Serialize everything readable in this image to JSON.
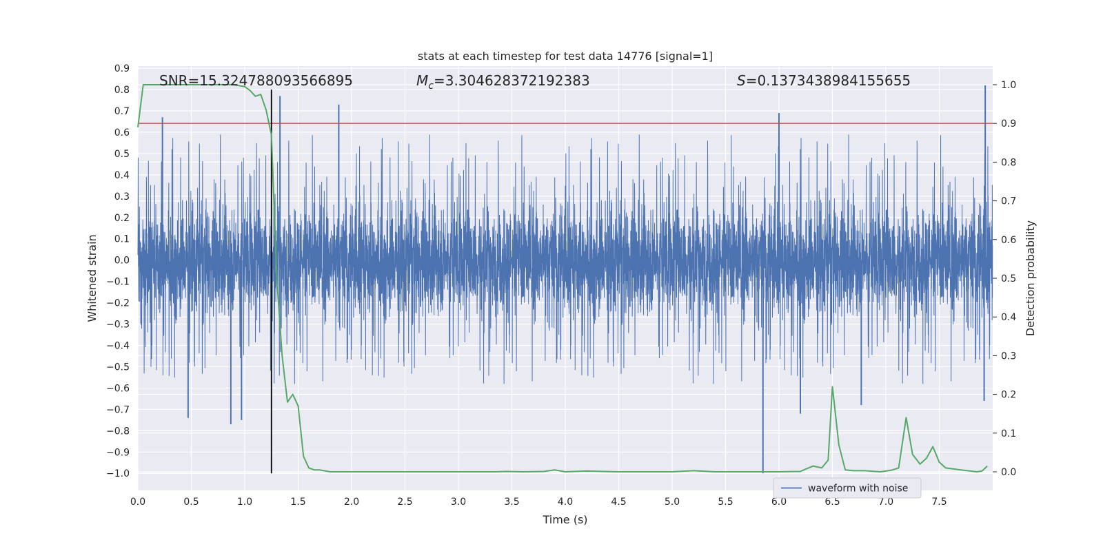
{
  "chart_data": {
    "type": "line",
    "title": "stats at each timestep for test data 14776 [signal=1]",
    "xlabel": "Time (s)",
    "ylabel": "Whitened strain",
    "y2label": "Detection probability",
    "xlim": [
      0.0,
      8.0
    ],
    "ylim": [
      -1.08,
      0.91
    ],
    "y2lim": [
      -0.048,
      1.048
    ],
    "x_ticks": [
      0.0,
      0.5,
      1.0,
      1.5,
      2.0,
      2.5,
      3.0,
      3.5,
      4.0,
      4.5,
      5.0,
      5.5,
      6.0,
      6.5,
      7.0,
      7.5
    ],
    "x_tick_labels": [
      "0.0",
      "0.5",
      "1.0",
      "1.5",
      "2.0",
      "2.5",
      "3.0",
      "3.5",
      "4.0",
      "4.5",
      "5.0",
      "5.5",
      "6.0",
      "6.5",
      "7.0",
      "7.5"
    ],
    "y_ticks": [
      -1.0,
      -0.9,
      -0.8,
      -0.7,
      -0.6,
      -0.5,
      -0.4,
      -0.3,
      -0.2,
      -0.1,
      0.0,
      0.1,
      0.2,
      0.3,
      0.4,
      0.5,
      0.6,
      0.7,
      0.8,
      0.9
    ],
    "y_tick_labels": [
      "−1.0",
      "−0.9",
      "−0.8",
      "−0.7",
      "−0.6",
      "−0.5",
      "−0.4",
      "−0.3",
      "−0.2",
      "−0.1",
      "0.0",
      "0.1",
      "0.2",
      "0.3",
      "0.4",
      "0.5",
      "0.6",
      "0.7",
      "0.8",
      "0.9"
    ],
    "y2_ticks": [
      0.0,
      0.1,
      0.2,
      0.3,
      0.4,
      0.5,
      0.6,
      0.7,
      0.8,
      0.9,
      1.0
    ],
    "y2_tick_labels": [
      "0.0",
      "0.1",
      "0.2",
      "0.3",
      "0.4",
      "0.5",
      "0.6",
      "0.7",
      "0.8",
      "0.9",
      "1.0"
    ],
    "grid": true,
    "legend_position": "lower-right",
    "annotations": {
      "snr": "SNR=15.324788093566895",
      "mc_symbol": "M",
      "mc_subscript": "c",
      "mc_value": "=3.304628372192383",
      "s_symbol": "S",
      "s_value": "=0.1373438984155655"
    },
    "threshold_line": {
      "y2": 0.9,
      "color": "#c44e52"
    },
    "event_marker": {
      "x": 1.25,
      "y_from": -1.0,
      "y_to": 0.8,
      "color": "#000000"
    },
    "series": [
      {
        "name": "waveform with noise",
        "axis": "left",
        "color": "#4c72b0",
        "band_typical": 0.28,
        "peak_envelope": 0.47,
        "notable_spikes": [
          [
            0.23,
            0.67
          ],
          [
            0.47,
            -0.74
          ],
          [
            0.87,
            -0.77
          ],
          [
            0.97,
            -0.75
          ],
          [
            1.33,
            0.77
          ],
          [
            1.88,
            0.73
          ],
          [
            5.85,
            -1.0
          ],
          [
            6.0,
            0.69
          ],
          [
            6.2,
            -0.72
          ],
          [
            6.77,
            -0.68
          ],
          [
            7.93,
            0.82
          ],
          [
            7.92,
            -0.66
          ]
        ]
      },
      {
        "name": "detection probability",
        "axis": "right",
        "color": "#55a868",
        "x": [
          0.0,
          0.05,
          0.1,
          0.2,
          0.3,
          0.5,
          0.7,
          0.9,
          1.0,
          1.05,
          1.1,
          1.15,
          1.2,
          1.25,
          1.3,
          1.35,
          1.4,
          1.45,
          1.5,
          1.55,
          1.6,
          1.65,
          1.7,
          1.8,
          1.9,
          2.0,
          2.2,
          2.5,
          3.0,
          3.35,
          3.45,
          3.6,
          3.8,
          3.9,
          4.0,
          4.2,
          4.5,
          5.0,
          5.2,
          5.4,
          5.8,
          6.0,
          6.2,
          6.32,
          6.4,
          6.46,
          6.5,
          6.56,
          6.62,
          6.7,
          6.8,
          6.95,
          7.05,
          7.12,
          7.19,
          7.25,
          7.32,
          7.38,
          7.44,
          7.5,
          7.56,
          7.7,
          7.85,
          7.9,
          7.95
        ],
        "y": [
          0.89,
          1.0,
          1.0,
          1.0,
          1.0,
          1.0,
          1.0,
          1.0,
          0.995,
          0.985,
          0.97,
          0.975,
          0.935,
          0.87,
          0.5,
          0.3,
          0.18,
          0.2,
          0.17,
          0.04,
          0.01,
          0.005,
          0.005,
          0.0,
          0.0,
          0.0,
          0.0,
          0.0,
          0.0,
          0.0,
          0.001,
          0.0,
          0.001,
          0.005,
          0.0,
          0.002,
          0.0,
          0.0,
          0.003,
          0.0,
          0.0,
          0.0,
          0.001,
          0.015,
          0.01,
          0.03,
          0.22,
          0.07,
          0.005,
          0.003,
          0.003,
          0.0,
          0.004,
          0.01,
          0.14,
          0.045,
          0.02,
          0.035,
          0.065,
          0.025,
          0.01,
          0.005,
          0.0,
          0.002,
          0.015
        ]
      }
    ]
  }
}
